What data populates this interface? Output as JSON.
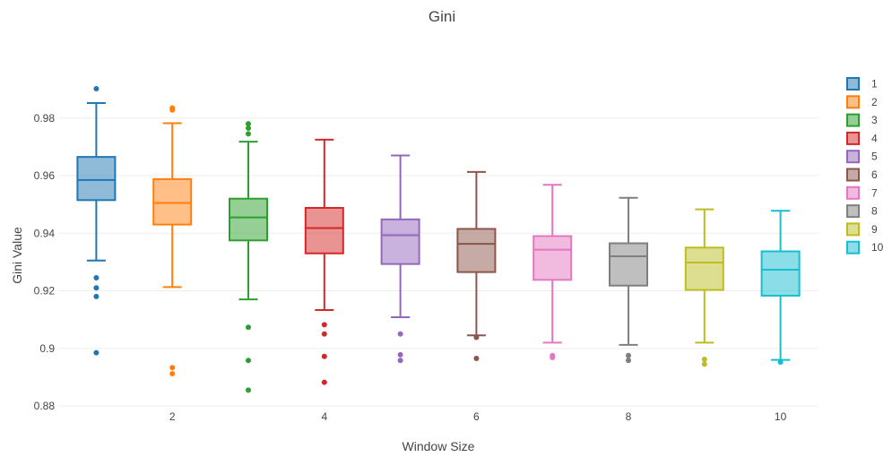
{
  "chart_data": {
    "type": "box",
    "title": "Gini",
    "xlabel": "Window Size",
    "ylabel": "Gini Value",
    "xlim": [
      0.5,
      10.5
    ],
    "ylim": [
      0.88,
      0.993
    ],
    "x_ticks": [
      {
        "value": 2,
        "label": "2"
      },
      {
        "value": 4,
        "label": "4"
      },
      {
        "value": 6,
        "label": "6"
      },
      {
        "value": 8,
        "label": "8"
      },
      {
        "value": 10,
        "label": "10"
      }
    ],
    "y_ticks": [
      {
        "value": 0.88,
        "label": "0.88"
      },
      {
        "value": 0.9,
        "label": "0.9"
      },
      {
        "value": 0.92,
        "label": "0.92"
      },
      {
        "value": 0.94,
        "label": "0.94"
      },
      {
        "value": 0.96,
        "label": "0.96"
      },
      {
        "value": 0.98,
        "label": "0.98"
      }
    ],
    "grid": true,
    "legend_position": "right",
    "series": [
      {
        "name": "1",
        "x": 1,
        "color": "#1f77b4",
        "fill": "rgba(31,119,180,0.5)",
        "whisker_low": 0.9305,
        "q1": 0.9515,
        "median": 0.9585,
        "q3": 0.9665,
        "whisker_high": 0.9852,
        "outliers": [
          0.9902,
          0.9245,
          0.921,
          0.918,
          0.8985
        ]
      },
      {
        "name": "2",
        "x": 2,
        "color": "#ff7f0e",
        "fill": "rgba(255,127,14,0.5)",
        "whisker_low": 0.9213,
        "q1": 0.943,
        "median": 0.9505,
        "q3": 0.9588,
        "whisker_high": 0.9782,
        "outliers": [
          0.9835,
          0.9828,
          0.8933,
          0.8912
        ]
      },
      {
        "name": "3",
        "x": 3,
        "color": "#2ca02c",
        "fill": "rgba(44,160,44,0.5)",
        "whisker_low": 0.917,
        "q1": 0.9375,
        "median": 0.9455,
        "q3": 0.952,
        "whisker_high": 0.9718,
        "outliers": [
          0.978,
          0.9765,
          0.9745,
          0.9073,
          0.8958,
          0.8855
        ]
      },
      {
        "name": "4",
        "x": 4,
        "color": "#d62728",
        "fill": "rgba(214,39,40,0.5)",
        "whisker_low": 0.9133,
        "q1": 0.933,
        "median": 0.9418,
        "q3": 0.9488,
        "whisker_high": 0.9725,
        "outliers": [
          0.9082,
          0.905,
          0.8972,
          0.8882
        ]
      },
      {
        "name": "5",
        "x": 5,
        "color": "#9467bd",
        "fill": "rgba(148,103,189,0.5)",
        "whisker_low": 0.9108,
        "q1": 0.9293,
        "median": 0.9393,
        "q3": 0.9448,
        "whisker_high": 0.967,
        "outliers": [
          0.905,
          0.8978,
          0.8958
        ]
      },
      {
        "name": "6",
        "x": 6,
        "color": "#8c564b",
        "fill": "rgba(140,86,75,0.5)",
        "whisker_low": 0.9045,
        "q1": 0.9265,
        "median": 0.9363,
        "q3": 0.9415,
        "whisker_high": 0.9613,
        "outliers": [
          0.9038,
          0.8965
        ]
      },
      {
        "name": "7",
        "x": 7,
        "color": "#e377c2",
        "fill": "rgba(227,119,194,0.5)",
        "whisker_low": 0.902,
        "q1": 0.9238,
        "median": 0.9343,
        "q3": 0.939,
        "whisker_high": 0.9568,
        "outliers": [
          0.8975,
          0.8968
        ]
      },
      {
        "name": "8",
        "x": 8,
        "color": "#7f7f7f",
        "fill": "rgba(127,127,127,0.5)",
        "whisker_low": 0.9012,
        "q1": 0.9218,
        "median": 0.932,
        "q3": 0.9365,
        "whisker_high": 0.9523,
        "outliers": [
          0.8975,
          0.8958
        ]
      },
      {
        "name": "9",
        "x": 9,
        "color": "#bcbd22",
        "fill": "rgba(188,189,34,0.5)",
        "whisker_low": 0.902,
        "q1": 0.9203,
        "median": 0.9298,
        "q3": 0.935,
        "whisker_high": 0.9483,
        "outliers": [
          0.8962,
          0.8945
        ]
      },
      {
        "name": "10",
        "x": 10,
        "color": "#17becf",
        "fill": "rgba(23,190,207,0.5)",
        "whisker_low": 0.896,
        "q1": 0.9183,
        "median": 0.9273,
        "q3": 0.9337,
        "whisker_high": 0.9478,
        "outliers": [
          0.8952
        ]
      }
    ]
  }
}
